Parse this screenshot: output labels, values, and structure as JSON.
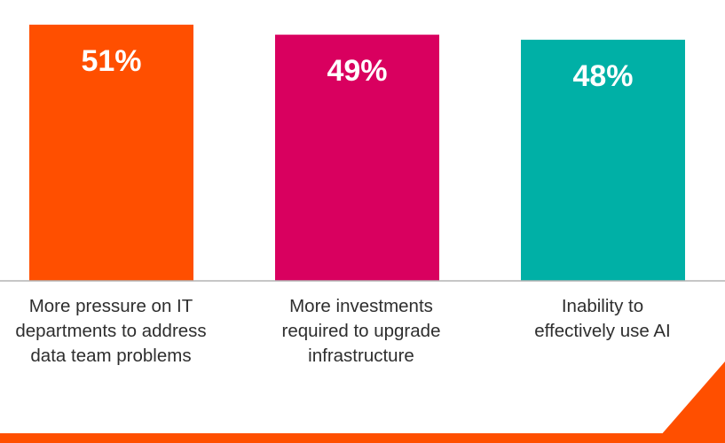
{
  "chart_data": {
    "type": "bar",
    "categories": [
      [
        "More pressure on IT",
        "departments to address",
        "data team problems"
      ],
      [
        "More investments",
        "required to upgrade",
        "infrastructure"
      ],
      [
        "Inability to",
        "effectively use AI"
      ]
    ],
    "values": [
      51,
      49,
      48
    ],
    "value_labels": [
      "51%",
      "49%",
      "48%"
    ],
    "title": "",
    "xlabel": "",
    "ylabel": "",
    "grid": false,
    "legend": "none"
  },
  "colors": {
    "bars": [
      "#ff4f00",
      "#d9005f",
      "#00b0a6"
    ],
    "baseline": "#b3b3b3",
    "accent": "#ff4f00"
  }
}
